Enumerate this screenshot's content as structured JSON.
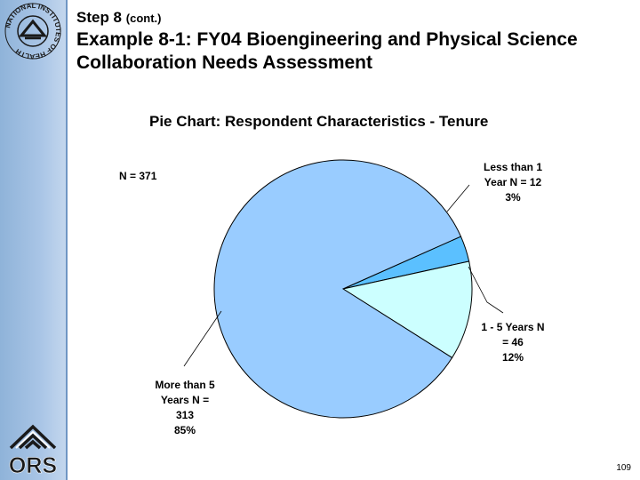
{
  "header": {
    "step": "Step 8",
    "step_suffix": "(cont.)",
    "title": "Example 8-1: FY04 Bioengineering and Physical Science Collaboration Needs Assessment"
  },
  "logos": {
    "top": "NATIONAL INSTITUTES OF HEALTH",
    "bottom": "ORS"
  },
  "slide_number": "109",
  "chart_data": {
    "type": "pie",
    "title": "Pie Chart:  Respondent Characteristics - Tenure",
    "total_label": "N = 371",
    "slices": [
      {
        "name": "Less than 1 Year",
        "value": 12,
        "percent": 3,
        "label": [
          "Less than 1",
          "Year  N = 12",
          "3%"
        ],
        "color": "#5bc0ff"
      },
      {
        "name": "1 - 5 Years",
        "value": 46,
        "percent": 12,
        "label": [
          "1 - 5 Years  N",
          "= 46",
          "12%"
        ],
        "color": "#ccffff"
      },
      {
        "name": "More than 5 Years",
        "value": 313,
        "percent": 85,
        "label": [
          "More than 5",
          "Years  N =",
          "313",
          "85%"
        ],
        "color": "#99ccff"
      }
    ]
  }
}
